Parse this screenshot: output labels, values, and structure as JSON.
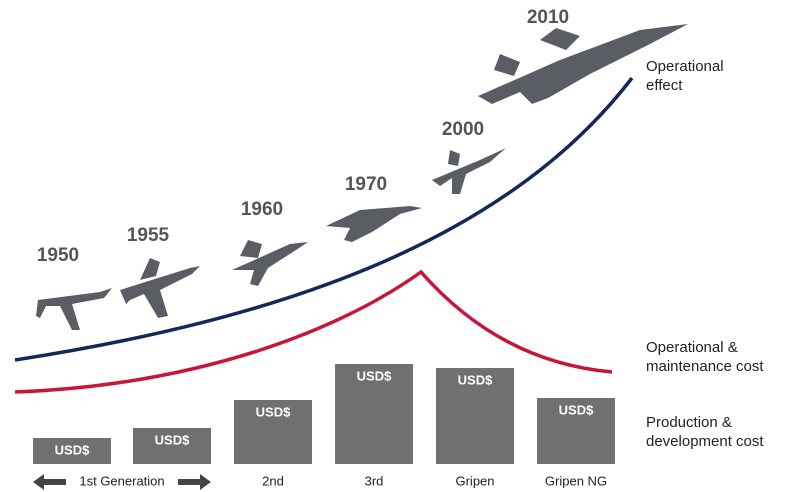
{
  "years": [
    "1950",
    "1955",
    "1960",
    "1970",
    "2000",
    "2010"
  ],
  "curve_labels": {
    "operational_effect": [
      "Operational",
      "effect"
    ],
    "maintenance_cost": [
      "Operational &",
      "maintenance cost"
    ],
    "production_cost": [
      "Production &",
      "development cost"
    ]
  },
  "bar_labels": [
    "USD$",
    "USD$",
    "USD$",
    "USD$",
    "USD$",
    "USD$"
  ],
  "x_labels": [
    "1st Generation",
    "2nd",
    "3rd",
    "Gripen",
    "Gripen NG"
  ]
}
